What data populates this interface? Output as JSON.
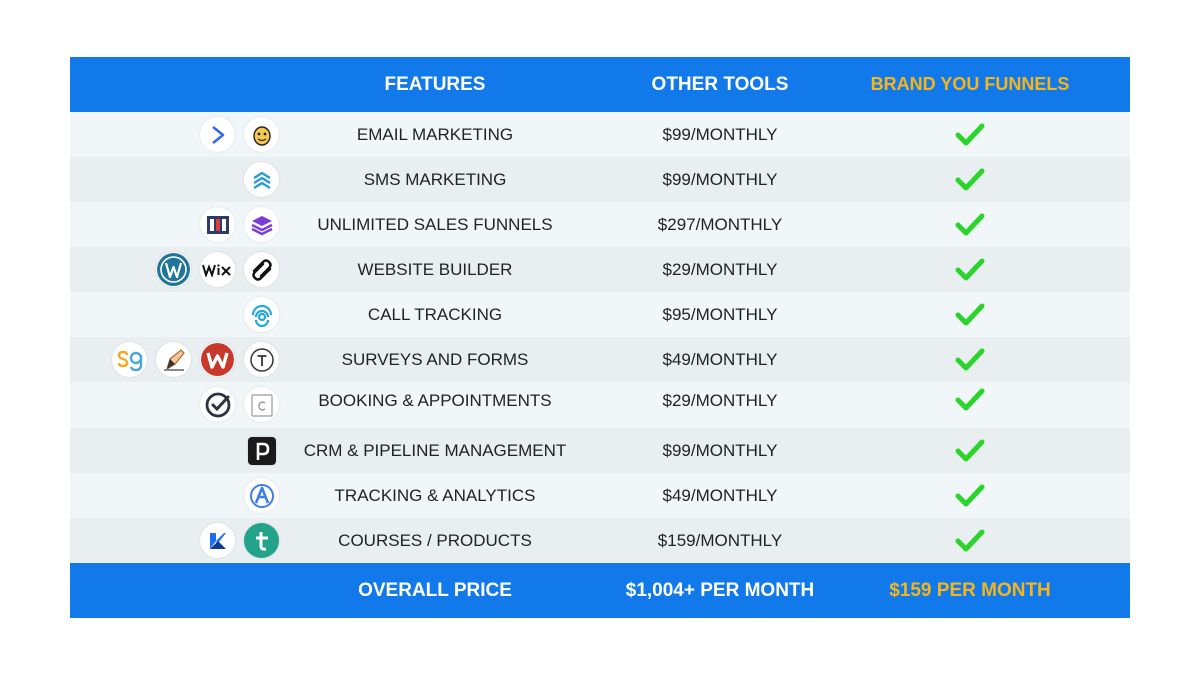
{
  "header": {
    "features": "FEATURES",
    "other_tools": "OTHER TOOLS",
    "brand": "BRAND YOU FUNNELS"
  },
  "rows": [
    {
      "feature": "EMAIL MARKETING",
      "price": "$99/MONTHLY",
      "included": true,
      "logos": [
        "activecampaign-logo",
        "mailchimp-logo"
      ]
    },
    {
      "feature": "SMS MARKETING",
      "price": "$99/MONTHLY",
      "included": true,
      "logos": [
        "sms-tool-logo"
      ]
    },
    {
      "feature": "UNLIMITED SALES FUNNELS",
      "price": "$297/MONTHLY",
      "included": true,
      "logos": [
        "clickfunnels-logo",
        "layers-logo"
      ]
    },
    {
      "feature": "WEBSITE BUILDER",
      "price": "$29/MONTHLY",
      "included": true,
      "logos": [
        "wordpress-logo",
        "wix-logo",
        "squarespace-logo"
      ]
    },
    {
      "feature": "CALL TRACKING",
      "price": "$95/MONTHLY",
      "included": true,
      "logos": [
        "calltracking-logo"
      ]
    },
    {
      "feature": "SURVEYS AND FORMS",
      "price": "$49/MONTHLY",
      "included": true,
      "logos": [
        "surveygizmo-logo",
        "jotform-logo",
        "wufoo-logo",
        "typeform-logo"
      ]
    },
    {
      "feature": "BOOKING & APPOINTMENTS",
      "price": "$29/MONTHLY",
      "included": true,
      "logos": [
        "check-circle-logo",
        "calendar-logo"
      ]
    },
    {
      "feature": "CRM & PIPELINE MANAGEMENT",
      "price": "$99/MONTHLY",
      "included": true,
      "logos": [
        "pipedrive-logo"
      ]
    },
    {
      "feature": "TRACKING & ANALYTICS",
      "price": "$49/MONTHLY",
      "included": true,
      "logos": [
        "analytics-logo"
      ]
    },
    {
      "feature": "COURSES / PRODUCTS",
      "price": "$159/MONTHLY",
      "included": true,
      "logos": [
        "kajabi-logo",
        "teachable-logo"
      ]
    }
  ],
  "footer": {
    "label": "OVERALL PRICE",
    "other_total": "$1,004+ PER MONTH",
    "brand_total": "$159 PER MONTH"
  },
  "colors": {
    "header_blue": "#1279ea",
    "brand_gold": "#f5b51b",
    "check_green": "#2bd42b"
  }
}
